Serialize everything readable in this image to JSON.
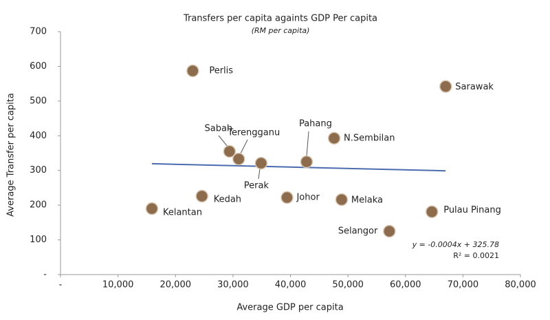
{
  "chart_data": {
    "type": "scatter",
    "title": "Transfers per capita againts GDP Per capita",
    "subtitle": "(RM per capita)",
    "x_label": "Average GDP per capita",
    "y_label": "Average Transfer per capita",
    "labels": [
      "Perlis",
      "Sarawak",
      "Sabah",
      "Terengganu",
      "Perak",
      "Pahang",
      "N.Sembilan",
      "Kedah",
      "Kelantan",
      "Johor",
      "Melaka",
      "Pulau Pinang",
      "Selangor"
    ],
    "x": [
      23000,
      67000,
      29400,
      31000,
      34900,
      42800,
      47600,
      24600,
      15900,
      39400,
      48900,
      64600,
      57200
    ],
    "values": [
      587,
      542,
      355,
      333,
      321,
      325,
      393,
      226,
      190,
      222,
      216,
      181,
      125
    ],
    "color": "#8c6c4c",
    "trendline": {
      "slope": -0.0004,
      "intercept": 325.78,
      "x_range": [
        15900,
        67000
      ],
      "color": "#4a6bb0"
    },
    "annotations": [
      "y = -0.0004x + 325.78",
      "R² = 0.0021"
    ],
    "xlim": [
      0,
      80000
    ],
    "ylim": [
      0,
      700
    ],
    "xticks": [
      {
        "value": 0,
        "label": "-"
      },
      {
        "value": 10000,
        "label": "10,000"
      },
      {
        "value": 20000,
        "label": "20,000"
      },
      {
        "value": 30000,
        "label": "30,000"
      },
      {
        "value": 40000,
        "label": "40,000"
      },
      {
        "value": 50000,
        "label": "50,000"
      },
      {
        "value": 60000,
        "label": "60,000"
      },
      {
        "value": 70000,
        "label": "70,000"
      },
      {
        "value": 80000,
        "label": "80,000"
      }
    ],
    "yticks": [
      {
        "value": 0,
        "label": "-"
      },
      100,
      200,
      300,
      400,
      500,
      600,
      700
    ]
  }
}
